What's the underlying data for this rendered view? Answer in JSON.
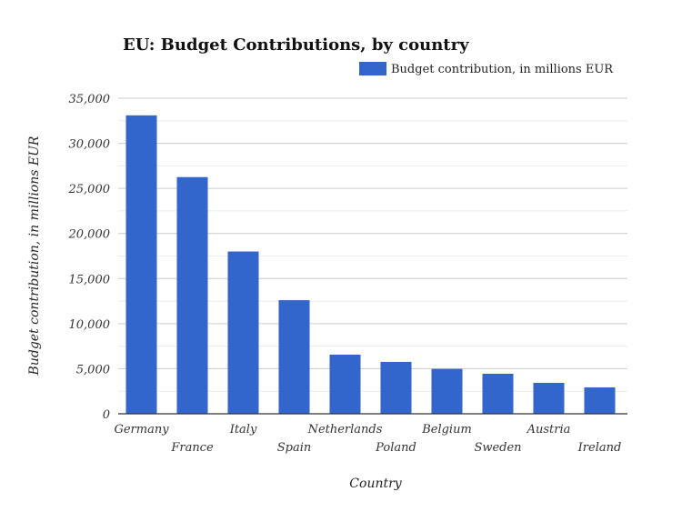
{
  "chart_data": {
    "type": "bar",
    "title": "EU: Budget Contributions, by country",
    "xlabel": "Country",
    "ylabel": "Budget contribution, in millions EUR",
    "categories": [
      "Germany",
      "France",
      "Italy",
      "Spain",
      "Netherlands",
      "Poland",
      "Belgium",
      "Sweden",
      "Austria",
      "Ireland"
    ],
    "series": [
      {
        "name": "Budget contribution, in millions EUR",
        "values": [
          33100,
          26250,
          18000,
          12600,
          6560,
          5760,
          4980,
          4440,
          3430,
          2930
        ],
        "color": "#3366cc"
      }
    ],
    "ylim": [
      0,
      35000
    ],
    "yticks": [
      "0",
      "5,000",
      "10,000",
      "15,000",
      "20,000",
      "25,000",
      "30,000",
      "35,000"
    ],
    "grid": true,
    "legend_position": "top-right"
  }
}
